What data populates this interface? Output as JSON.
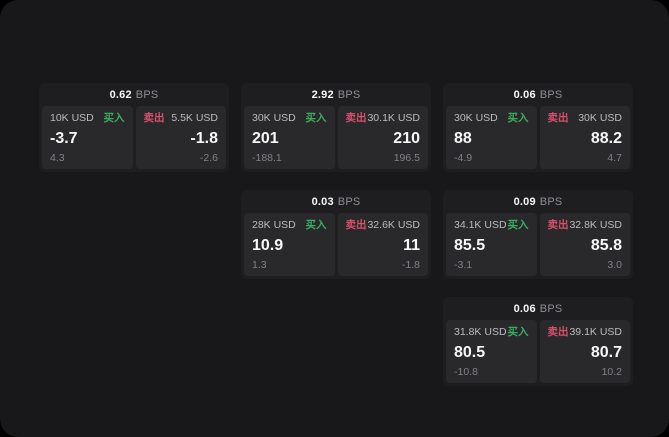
{
  "colors": {
    "surface_bg": "#18181a",
    "card_bg": "#1e1e21",
    "panel_bg": "#29292c",
    "buy_accent": "#3aae5e",
    "sell_accent": "#d8506a"
  },
  "labels": {
    "bps_unit": "BPS",
    "buy": "买入",
    "sell": "卖出"
  },
  "cards": [
    {
      "bps": "0.62",
      "bps_unit": "BPS",
      "buy": {
        "amount": "10K USD",
        "label": "买入",
        "price": "-3.7",
        "sub": "4.3"
      },
      "sell": {
        "label": "卖出",
        "amount": "5.5K USD",
        "price": "-1.8",
        "sub": "-2.6"
      }
    },
    {
      "bps": "2.92",
      "bps_unit": "BPS",
      "buy": {
        "amount": "30K USD",
        "label": "买入",
        "price": "201",
        "sub": "-188.1"
      },
      "sell": {
        "label": "卖出",
        "amount": "30.1K USD",
        "price": "210",
        "sub": "196.5"
      }
    },
    {
      "bps": "0.06",
      "bps_unit": "BPS",
      "buy": {
        "amount": "30K USD",
        "label": "买入",
        "price": "88",
        "sub": "-4.9"
      },
      "sell": {
        "label": "卖出",
        "amount": "30K USD",
        "price": "88.2",
        "sub": "4.7"
      }
    },
    {
      "bps": "0.03",
      "bps_unit": "BPS",
      "buy": {
        "amount": "28K USD",
        "label": "买入",
        "price": "10.9",
        "sub": "1.3"
      },
      "sell": {
        "label": "卖出",
        "amount": "32.6K USD",
        "price": "11",
        "sub": "-1.8"
      }
    },
    {
      "bps": "0.09",
      "bps_unit": "BPS",
      "buy": {
        "amount": "34.1K USD",
        "label": "买入",
        "price": "85.5",
        "sub": "-3.1"
      },
      "sell": {
        "label": "卖出",
        "amount": "32.8K USD",
        "price": "85.8",
        "sub": "3.0"
      }
    },
    {
      "bps": "0.06",
      "bps_unit": "BPS",
      "buy": {
        "amount": "31.8K USD",
        "label": "买入",
        "price": "80.5",
        "sub": "-10.8"
      },
      "sell": {
        "label": "卖出",
        "amount": "39.1K USD",
        "price": "80.7",
        "sub": "10.2"
      }
    }
  ]
}
